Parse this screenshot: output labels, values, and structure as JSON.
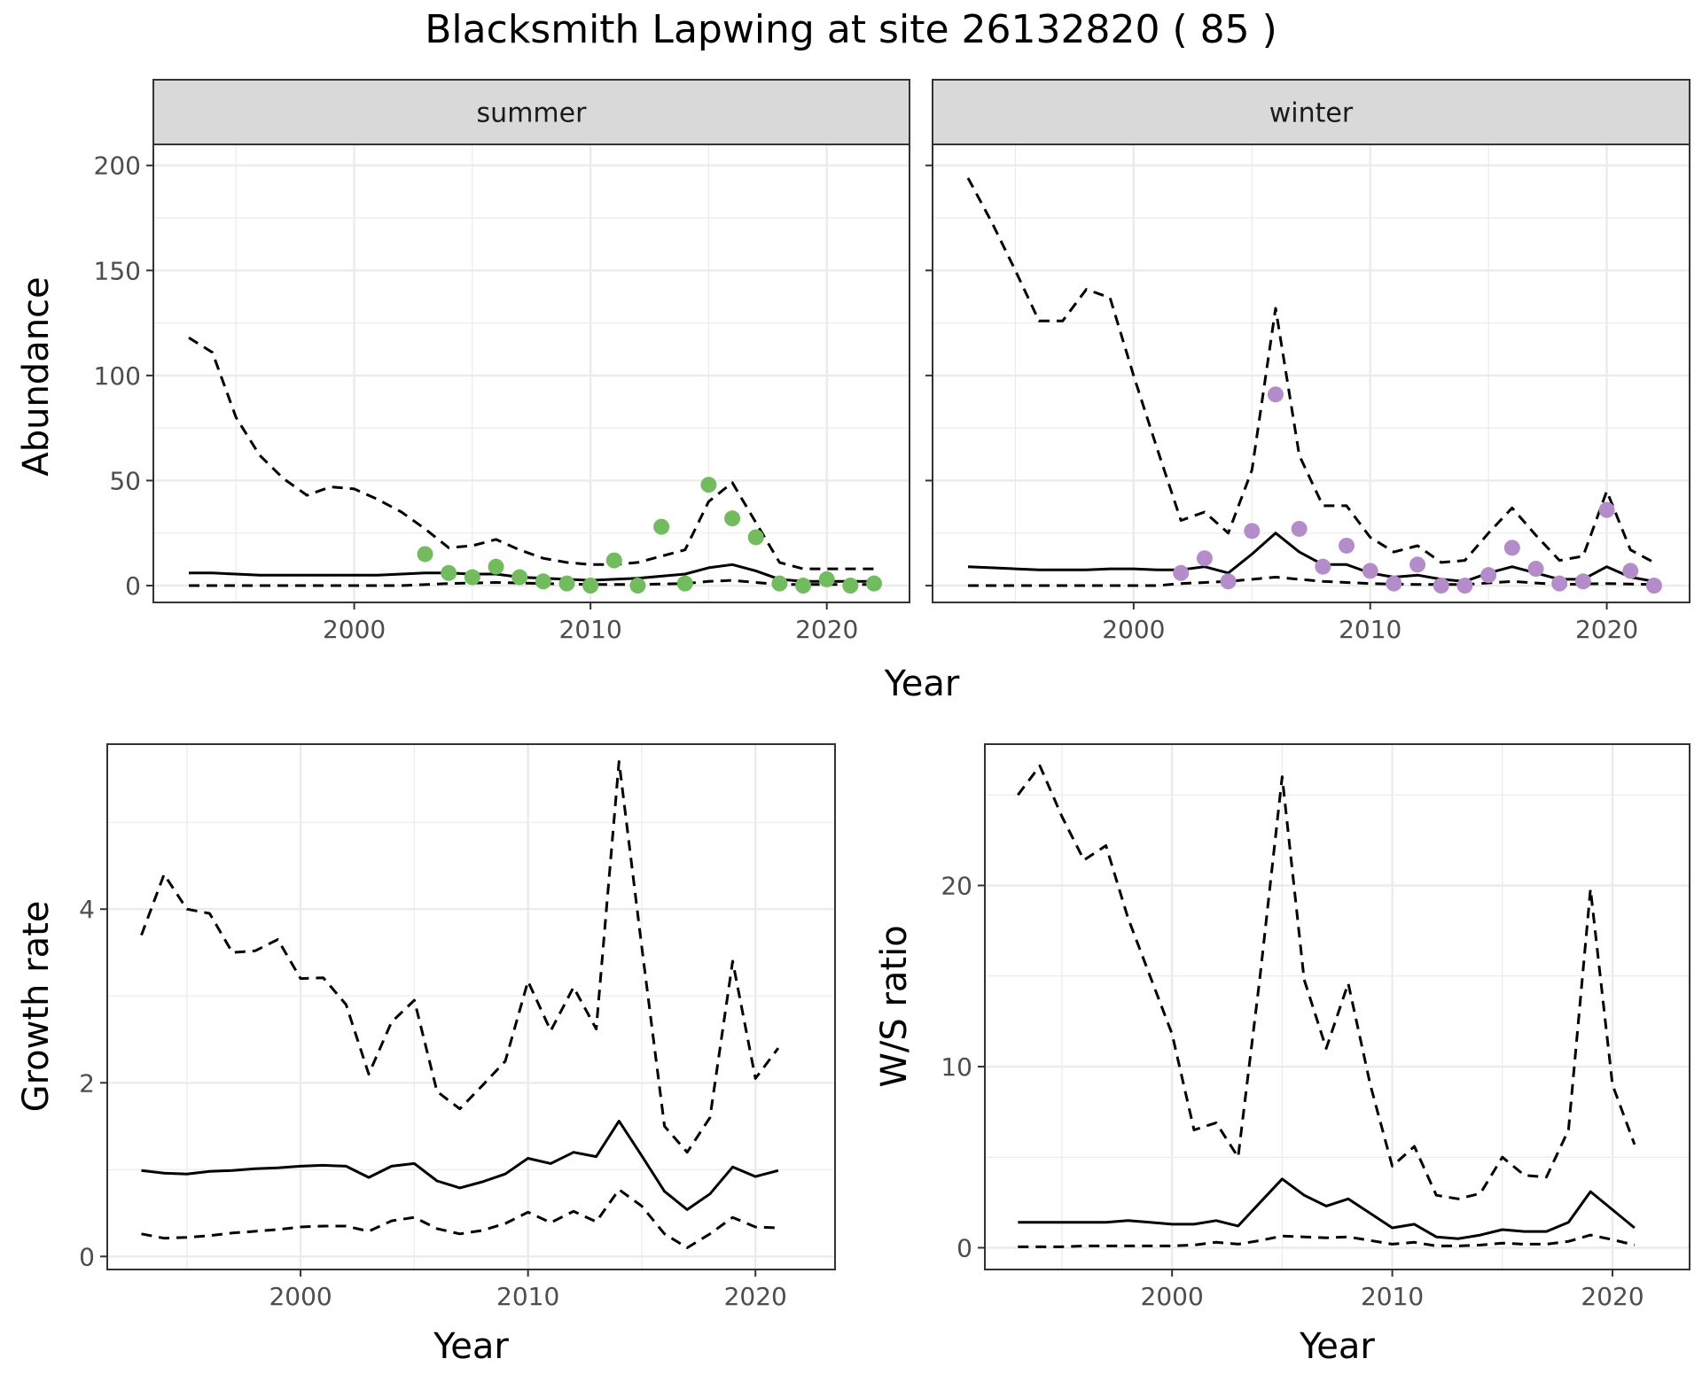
{
  "figure": {
    "title": "Blacksmith Lapwing at site 26132820 ( 85 )"
  },
  "colors": {
    "summer_points": "#72bb5e",
    "winter_points": "#b48cc9",
    "lines": "#000000",
    "strip_fill": "#d9d9d9",
    "grid": "#ebebeb"
  },
  "chart_data": [
    {
      "type": "line",
      "panel": "summer",
      "strip": "summer",
      "ylabel": "Abundance",
      "xlabel": "Year",
      "xlim": [
        1991.5,
        2023.5
      ],
      "ylim": [
        -8,
        210
      ],
      "x_ticks": [
        2000,
        2010,
        2020
      ],
      "y_ticks": [
        0,
        50,
        100,
        150,
        200
      ],
      "grid": true,
      "series": [
        {
          "style": "solid",
          "x": [
            1993,
            1994,
            1995,
            1996,
            1997,
            1998,
            1999,
            2000,
            2001,
            2002,
            2003,
            2004,
            2005,
            2006,
            2007,
            2008,
            2009,
            2010,
            2011,
            2012,
            2013,
            2014,
            2015,
            2016,
            2017,
            2018,
            2019,
            2020,
            2021,
            2022
          ],
          "y": [
            6,
            6,
            5.5,
            5,
            5,
            5,
            5,
            5,
            5,
            5.5,
            6,
            6,
            5.5,
            5.5,
            4,
            3.5,
            3,
            2.5,
            3,
            3.5,
            4.5,
            5.5,
            8.5,
            10,
            7,
            3,
            2,
            2,
            2,
            2
          ]
        },
        {
          "style": "dashed",
          "x": [
            1993,
            1994,
            1995,
            1996,
            1997,
            1998,
            1999,
            2000,
            2001,
            2002,
            2003,
            2004,
            2005,
            2006,
            2007,
            2008,
            2009,
            2010,
            2011,
            2012,
            2013,
            2014,
            2015,
            2016,
            2017,
            2018,
            2019,
            2020,
            2021,
            2022
          ],
          "y": [
            118,
            111,
            80,
            62,
            51,
            43,
            47,
            46,
            41,
            35,
            27,
            18,
            19,
            22,
            17,
            13,
            11,
            10,
            10,
            11,
            14,
            17,
            40,
            49,
            30,
            11,
            8,
            8,
            8,
            8
          ]
        },
        {
          "style": "dashed",
          "x": [
            1993,
            1995,
            2000,
            2002,
            2004,
            2006,
            2008,
            2010,
            2012,
            2014,
            2015,
            2016,
            2017,
            2018,
            2020,
            2022
          ],
          "y": [
            0,
            0,
            0,
            0,
            1,
            1.5,
            1,
            0.5,
            0.5,
            1,
            2,
            2.5,
            1.5,
            0.5,
            0.5,
            0.5
          ]
        }
      ],
      "points": {
        "x": [
          2003,
          2004,
          2005,
          2006,
          2007,
          2008,
          2009,
          2010,
          2011,
          2012,
          2013,
          2014,
          2015,
          2016,
          2017,
          2018,
          2019,
          2020,
          2021,
          2022
        ],
        "y": [
          15,
          6,
          4,
          9,
          4,
          2,
          1,
          0,
          12,
          0,
          28,
          1,
          48,
          32,
          23,
          1,
          0,
          3,
          0,
          1
        ]
      }
    },
    {
      "type": "line",
      "panel": "winter",
      "strip": "winter",
      "xlim": [
        1991.5,
        2023.5
      ],
      "ylim": [
        -8,
        210
      ],
      "x_ticks": [
        2000,
        2010,
        2020
      ],
      "y_ticks": [
        0,
        50,
        100,
        150,
        200
      ],
      "grid": true,
      "series": [
        {
          "style": "solid",
          "x": [
            1993,
            1994,
            1995,
            1996,
            1997,
            1998,
            1999,
            2000,
            2001,
            2002,
            2003,
            2004,
            2005,
            2006,
            2007,
            2008,
            2009,
            2010,
            2011,
            2012,
            2013,
            2014,
            2015,
            2016,
            2017,
            2018,
            2019,
            2020,
            2021,
            2022
          ],
          "y": [
            9,
            8.5,
            8,
            7.5,
            7.5,
            7.5,
            8,
            8,
            7.5,
            7.5,
            9,
            6,
            15,
            25,
            16,
            10,
            10,
            6,
            4,
            5,
            3,
            2,
            6,
            9,
            6,
            3,
            3,
            9,
            4,
            2
          ]
        },
        {
          "style": "dashed",
          "x": [
            1993,
            1994,
            1995,
            1996,
            1997,
            1998,
            1999,
            2000,
            2001,
            2002,
            2003,
            2004,
            2005,
            2006,
            2007,
            2008,
            2009,
            2010,
            2011,
            2012,
            2013,
            2014,
            2015,
            2016,
            2017,
            2018,
            2019,
            2020,
            2021,
            2022
          ],
          "y": [
            194,
            173,
            150,
            126,
            126,
            141,
            137,
            100,
            65,
            31,
            35,
            25,
            55,
            132,
            62,
            38,
            38,
            23,
            16,
            19,
            11,
            12,
            25,
            37,
            24,
            12,
            14,
            45,
            17,
            11
          ]
        },
        {
          "style": "dashed",
          "x": [
            1993,
            1995,
            2000,
            2001,
            2002,
            2004,
            2006,
            2008,
            2010,
            2012,
            2014,
            2016,
            2018,
            2020,
            2022
          ],
          "y": [
            0,
            0,
            0,
            0,
            1,
            2,
            4,
            2,
            1,
            0.5,
            0.5,
            2,
            0.5,
            1,
            0.5
          ]
        }
      ],
      "points": {
        "x": [
          2002,
          2003,
          2004,
          2005,
          2006,
          2007,
          2008,
          2009,
          2010,
          2011,
          2012,
          2013,
          2014,
          2015,
          2016,
          2017,
          2018,
          2019,
          2020,
          2021,
          2022
        ],
        "y": [
          6,
          13,
          2,
          26,
          91,
          27,
          9,
          19,
          7,
          1,
          10,
          0,
          0,
          5,
          18,
          8,
          1,
          2,
          36,
          7,
          0
        ]
      }
    },
    {
      "type": "line",
      "panel": "growth",
      "ylabel": "Growth rate",
      "xlabel": "Year",
      "xlim": [
        1991.5,
        2023.5
      ],
      "ylim": [
        -0.15,
        5.9
      ],
      "x_ticks": [
        2000,
        2010,
        2020
      ],
      "y_ticks": [
        0,
        2,
        4
      ],
      "grid": true,
      "series": [
        {
          "style": "solid",
          "x": [
            1993,
            1994,
            1995,
            1996,
            1997,
            1998,
            1999,
            2000,
            2001,
            2002,
            2003,
            2004,
            2005,
            2006,
            2007,
            2008,
            2009,
            2010,
            2011,
            2012,
            2013,
            2014,
            2015,
            2016,
            2017,
            2018,
            2019,
            2020,
            2021
          ],
          "y": [
            0.99,
            0.96,
            0.95,
            0.98,
            0.99,
            1.01,
            1.02,
            1.04,
            1.05,
            1.04,
            0.91,
            1.04,
            1.07,
            0.87,
            0.79,
            0.86,
            0.95,
            1.13,
            1.07,
            1.2,
            1.15,
            1.56,
            1.16,
            0.75,
            0.54,
            0.72,
            1.03,
            0.92,
            0.99
          ]
        },
        {
          "style": "dashed",
          "x": [
            1993,
            1994,
            1995,
            1996,
            1997,
            1998,
            1999,
            2000,
            2001,
            2002,
            2003,
            2004,
            2005,
            2006,
            2007,
            2008,
            2009,
            2010,
            2011,
            2012,
            2013,
            2014,
            2015,
            2016,
            2017,
            2018,
            2019,
            2020,
            2021
          ],
          "y": [
            3.7,
            4.4,
            4.0,
            3.95,
            3.5,
            3.52,
            3.65,
            3.2,
            3.21,
            2.9,
            2.1,
            2.7,
            2.95,
            1.9,
            1.7,
            1.97,
            2.25,
            3.17,
            2.6,
            3.1,
            2.62,
            5.7,
            3.57,
            1.5,
            1.2,
            1.6,
            3.4,
            2.05,
            2.4
          ]
        },
        {
          "style": "dashed",
          "x": [
            1993,
            1994,
            1995,
            1996,
            1997,
            1998,
            1999,
            2000,
            2001,
            2002,
            2003,
            2004,
            2005,
            2006,
            2007,
            2008,
            2009,
            2010,
            2011,
            2012,
            2013,
            2014,
            2015,
            2016,
            2017,
            2018,
            2019,
            2020,
            2021
          ],
          "y": [
            0.26,
            0.21,
            0.22,
            0.24,
            0.27,
            0.29,
            0.31,
            0.34,
            0.35,
            0.35,
            0.29,
            0.41,
            0.45,
            0.32,
            0.26,
            0.3,
            0.38,
            0.51,
            0.39,
            0.52,
            0.4,
            0.77,
            0.58,
            0.26,
            0.1,
            0.26,
            0.45,
            0.34,
            0.33
          ]
        }
      ]
    },
    {
      "type": "line",
      "panel": "ratio",
      "ylabel": "W/S ratio",
      "xlabel": "Year",
      "xlim": [
        1991.5,
        2023.5
      ],
      "ylim": [
        -1.2,
        27.8
      ],
      "x_ticks": [
        2000,
        2010,
        2020
      ],
      "y_ticks": [
        0,
        10,
        20
      ],
      "grid": true,
      "series": [
        {
          "style": "solid",
          "x": [
            1993,
            1994,
            1995,
            1996,
            1997,
            1998,
            1999,
            2000,
            2001,
            2002,
            2003,
            2004,
            2005,
            2006,
            2007,
            2008,
            2009,
            2010,
            2011,
            2012,
            2013,
            2014,
            2015,
            2016,
            2017,
            2018,
            2019,
            2020,
            2021
          ],
          "y": [
            1.4,
            1.4,
            1.4,
            1.4,
            1.4,
            1.5,
            1.4,
            1.3,
            1.3,
            1.5,
            1.2,
            2.5,
            3.8,
            2.9,
            2.3,
            2.7,
            1.9,
            1.1,
            1.3,
            0.6,
            0.5,
            0.7,
            1.0,
            0.9,
            0.9,
            1.4,
            3.1,
            2.1,
            1.1
          ]
        },
        {
          "style": "dashed",
          "x": [
            1993,
            1994,
            1995,
            1996,
            1997,
            1998,
            1999,
            2000,
            2001,
            2002,
            2003,
            2004,
            2005,
            2006,
            2007,
            2008,
            2009,
            2010,
            2011,
            2012,
            2013,
            2014,
            2015,
            2016,
            2017,
            2018,
            2019,
            2020,
            2021
          ],
          "y": [
            25,
            26.6,
            23.8,
            21.4,
            22.2,
            18.2,
            15.0,
            11.8,
            6.5,
            6.9,
            5.0,
            15.0,
            26.0,
            14.8,
            11.0,
            14.6,
            9.0,
            4.5,
            5.6,
            2.9,
            2.7,
            3.0,
            5.0,
            4.0,
            3.9,
            6.5,
            19.8,
            9.0,
            5.7
          ]
        },
        {
          "style": "dashed",
          "x": [
            1993,
            1994,
            1995,
            1996,
            1997,
            1998,
            1999,
            2000,
            2001,
            2002,
            2003,
            2004,
            2005,
            2006,
            2007,
            2008,
            2009,
            2010,
            2011,
            2012,
            2013,
            2014,
            2015,
            2016,
            2017,
            2018,
            2019,
            2020,
            2021
          ],
          "y": [
            0.05,
            0.05,
            0.05,
            0.1,
            0.1,
            0.1,
            0.1,
            0.1,
            0.15,
            0.3,
            0.2,
            0.4,
            0.65,
            0.6,
            0.55,
            0.6,
            0.4,
            0.2,
            0.3,
            0.1,
            0.1,
            0.15,
            0.25,
            0.2,
            0.2,
            0.35,
            0.7,
            0.45,
            0.15
          ]
        }
      ]
    }
  ]
}
